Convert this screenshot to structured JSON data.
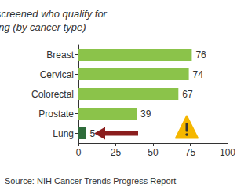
{
  "chart_data": {
    "type": "bar",
    "title": "Patients screened who qualify for testing (by cancer type)",
    "caption": "Source: NIH Cancer Trends Progress Report",
    "orientation": "horizontal",
    "categories": [
      "Breast",
      "Cervical",
      "Colorectal",
      "Prostate",
      "Lung"
    ],
    "values": [
      76,
      74,
      67,
      39,
      5
    ],
    "colors": [
      "#8bc34a",
      "#8bc34a",
      "#8bc34a",
      "#8bc34a",
      "#2e6b3a"
    ],
    "xlim": [
      0,
      100
    ],
    "xticks": [
      0,
      25,
      50,
      75,
      100
    ],
    "data_labels": true,
    "grid": false
  }
}
